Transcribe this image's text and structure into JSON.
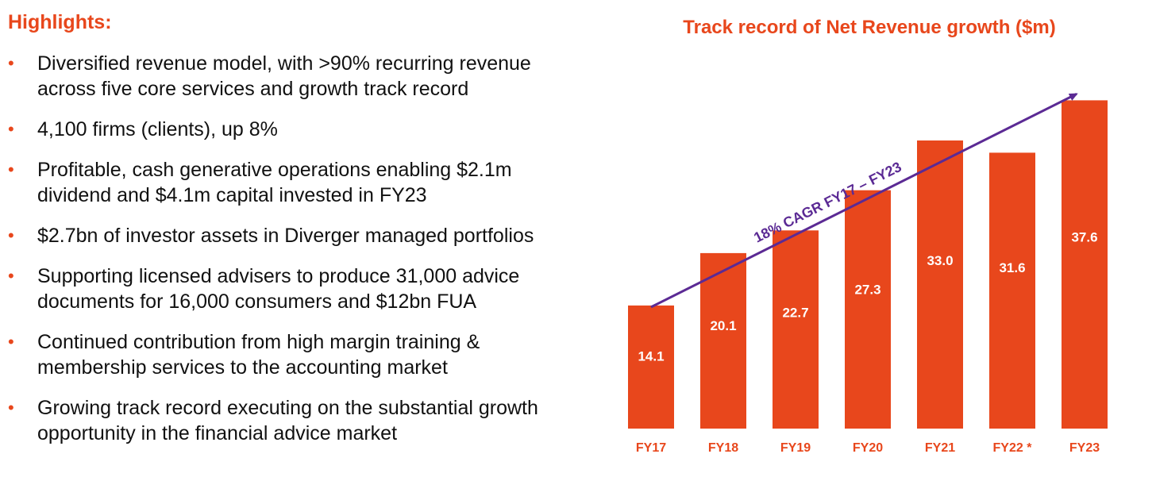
{
  "highlights": {
    "title": "Highlights:",
    "bullet_symbol": "•",
    "items": [
      {
        "lines": [
          "Diversified revenue model, with >90% recurring revenue",
          "across five core services and growth track record"
        ]
      },
      {
        "lines": [
          "4,100 firms (clients), up 8%"
        ]
      },
      {
        "lines": [
          "Profitable, cash generative operations enabling $2.1m",
          "dividend and $4.1m capital invested in FY23"
        ]
      },
      {
        "lines": [
          "$2.7bn of investor assets in Diverger managed portfolios"
        ]
      },
      {
        "lines": [
          "Supporting licensed advisers to produce 31,000 advice",
          "documents for 16,000 consumers and $12bn FUA"
        ]
      },
      {
        "lines": [
          "Continued contribution from high margin training &",
          "membership services to the accounting market"
        ]
      },
      {
        "lines": [
          "Growing track record executing on the substantial growth",
          "opportunity in the financial advice market"
        ]
      }
    ]
  },
  "colors": {
    "accent": "#e8471c",
    "arrow": "#5b2a94"
  },
  "chart_data": {
    "type": "bar",
    "title": "Track record of Net Revenue growth ($m)",
    "categories": [
      "FY17",
      "FY18",
      "FY19",
      "FY20",
      "FY21",
      "FY22 *",
      "FY23"
    ],
    "values": [
      14.1,
      20.1,
      22.7,
      27.3,
      33.0,
      31.6,
      37.6
    ],
    "value_labels": [
      "14.1",
      "20.1",
      "22.7",
      "27.3",
      "33.0",
      "31.6",
      "37.6"
    ],
    "ylim": [
      0,
      40
    ],
    "grid": false,
    "xlabel": "",
    "ylabel": "",
    "annotation": {
      "text": "18% CAGR FY17 – FY23",
      "from_category": "FY17",
      "to_category": "FY23"
    }
  }
}
